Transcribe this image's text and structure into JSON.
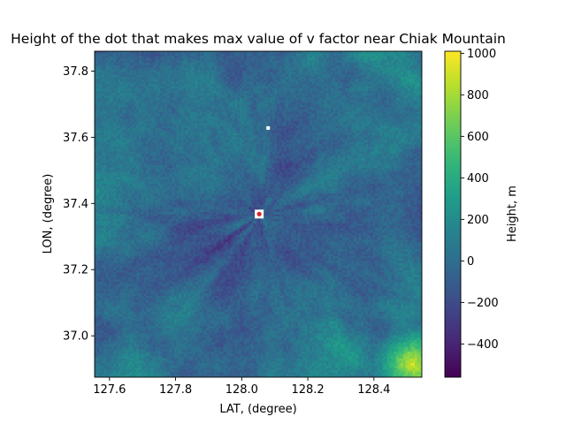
{
  "chart_data": {
    "type": "heatmap",
    "title": "Height of the dot that makes max value of v factor near Chiak Mountain",
    "xlabel": "LAT, (degree)",
    "ylabel": "LON, (degree)",
    "colorbar_label": "Height, m",
    "colormap": "viridis",
    "xlim": [
      127.555,
      128.545
    ],
    "ylim": [
      36.875,
      37.86
    ],
    "x_ticks": [
      127.6,
      127.8,
      128.0,
      128.2,
      128.4
    ],
    "x_tick_labels": [
      "127.6",
      "127.8",
      "128.0",
      "128.2",
      "128.4"
    ],
    "y_ticks": [
      37.0,
      37.2,
      37.4,
      37.6,
      37.8
    ],
    "y_tick_labels": [
      "37.0",
      "37.2",
      "37.4",
      "37.6",
      "37.8"
    ],
    "value_range": [
      -560,
      1010
    ],
    "colorbar_ticks": [
      -400,
      -200,
      0,
      200,
      400,
      600,
      800,
      1000
    ],
    "colorbar_tick_labels": [
      "−400",
      "−200",
      "0",
      "200",
      "400",
      "600",
      "800",
      "1000"
    ],
    "marker": {
      "x": 128.053,
      "y": 37.368,
      "color": "#d62728",
      "outline_color": "#ffffff"
    },
    "highlight_point": {
      "x": 128.08,
      "y": 37.628,
      "color": "#ffffff"
    },
    "grid": false
  }
}
